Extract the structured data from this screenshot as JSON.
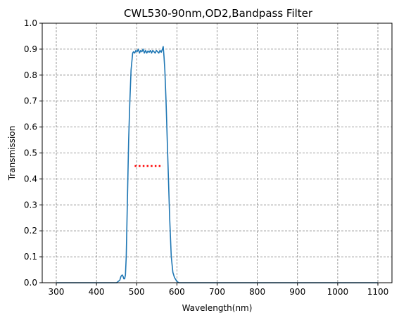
{
  "chart_data": {
    "type": "line",
    "title": "CWL530-90nm,OD2,Bandpass Filter",
    "xlabel": "Wavelength(nm)",
    "ylabel": "Transmission",
    "xlim": [
      265,
      1135
    ],
    "ylim": [
      0,
      1.0
    ],
    "xticks": [
      300,
      400,
      500,
      600,
      700,
      800,
      900,
      1000,
      1100
    ],
    "yticks": [
      0,
      0.1,
      0.2,
      0.3,
      0.4,
      0.5,
      0.6,
      0.7,
      0.8,
      0.9,
      1.0
    ],
    "xtick_labels": [
      "300",
      "400",
      "500",
      "600",
      "700",
      "800",
      "900",
      "1000",
      "1100"
    ],
    "ytick_labels": [
      "0.0",
      "0.1",
      "0.2",
      "0.3",
      "0.4",
      "0.5",
      "0.6",
      "0.7",
      "0.8",
      "0.9",
      "1.0"
    ],
    "grid": true,
    "grid_color": "#808080",
    "series": [
      {
        "style": "solid",
        "color": "#1f77b4",
        "x": [
          300,
          450,
          458,
          461,
          464,
          466,
          468,
          470,
          472,
          474,
          476,
          478,
          480,
          483,
          486,
          490,
          492,
          495,
          498,
          501,
          504,
          507,
          510,
          513,
          516,
          519,
          522,
          525,
          528,
          531,
          534,
          537,
          540,
          543,
          546,
          549,
          552,
          555,
          558,
          561,
          564,
          566,
          567,
          568,
          570,
          573,
          576,
          579,
          582,
          586,
          590,
          594,
          598,
          600,
          605,
          700,
          800,
          900,
          1000,
          1100
        ],
        "y": [
          0.0,
          0.0,
          0.01,
          0.025,
          0.03,
          0.025,
          0.015,
          0.015,
          0.03,
          0.1,
          0.25,
          0.4,
          0.55,
          0.7,
          0.82,
          0.885,
          0.89,
          0.885,
          0.895,
          0.89,
          0.9,
          0.885,
          0.895,
          0.89,
          0.9,
          0.885,
          0.895,
          0.885,
          0.893,
          0.888,
          0.895,
          0.885,
          0.895,
          0.89,
          0.885,
          0.895,
          0.89,
          0.885,
          0.895,
          0.888,
          0.9,
          0.91,
          0.89,
          0.87,
          0.82,
          0.7,
          0.55,
          0.4,
          0.25,
          0.1,
          0.04,
          0.02,
          0.01,
          0.005,
          0.0,
          0.0,
          0.0,
          0.0,
          0.0,
          0.0
        ]
      },
      {
        "style": "dotted",
        "color": "#ff0000",
        "x": [
          495,
          565
        ],
        "y": [
          0.45,
          0.45
        ]
      }
    ]
  }
}
